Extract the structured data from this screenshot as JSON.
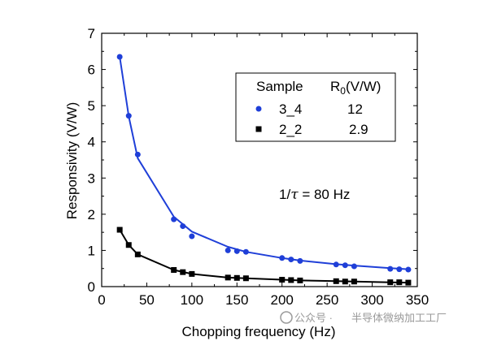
{
  "chart_data": {
    "type": "line",
    "xlabel": "Chopping frequency (Hz)",
    "ylabel": "Responsivity (V/W)",
    "xlim": [
      0,
      350
    ],
    "ylim": [
      0,
      7
    ],
    "x_ticks": [
      0,
      50,
      100,
      150,
      200,
      250,
      300,
      350
    ],
    "y_ticks": [
      0,
      1,
      2,
      3,
      4,
      5,
      6,
      7
    ],
    "grid": false,
    "legend": {
      "placement": "top-right",
      "header_col1": "Sample",
      "header_col2_main": "R",
      "header_col2_sub": "0",
      "header_col2_unit": "(V/W)",
      "entries": [
        {
          "name": "3_4",
          "r0": "12",
          "color": "#1f3fd8",
          "marker": "circle"
        },
        {
          "name": "2_2",
          "r0": "2.9",
          "color": "#000000",
          "marker": "square"
        }
      ]
    },
    "annotation": {
      "prefix": "1/",
      "symbol": "τ",
      "suffix": " = 80 Hz"
    },
    "series": [
      {
        "name": "3_4",
        "color": "#1f3fd8",
        "marker": "circle",
        "points": [
          [
            20,
            6.35
          ],
          [
            30,
            4.72
          ],
          [
            40,
            3.65
          ],
          [
            80,
            1.86
          ],
          [
            90,
            1.67
          ],
          [
            100,
            1.39
          ],
          [
            140,
            1.0
          ],
          [
            150,
            0.98
          ],
          [
            160,
            0.96
          ],
          [
            200,
            0.79
          ],
          [
            210,
            0.75
          ],
          [
            220,
            0.71
          ],
          [
            260,
            0.61
          ],
          [
            270,
            0.59
          ],
          [
            280,
            0.56
          ],
          [
            320,
            0.49
          ],
          [
            330,
            0.48
          ],
          [
            340,
            0.47
          ]
        ],
        "fit": [
          [
            20,
            6.35
          ],
          [
            30,
            4.7
          ],
          [
            40,
            3.55
          ],
          [
            80,
            1.93
          ],
          [
            100,
            1.52
          ],
          [
            140,
            1.1
          ],
          [
            160,
            0.96
          ],
          [
            200,
            0.79
          ],
          [
            220,
            0.72
          ],
          [
            260,
            0.62
          ],
          [
            280,
            0.58
          ],
          [
            320,
            0.51
          ],
          [
            340,
            0.48
          ]
        ]
      },
      {
        "name": "2_2",
        "color": "#000000",
        "marker": "square",
        "points": [
          [
            20,
            1.57
          ],
          [
            30,
            1.15
          ],
          [
            40,
            0.89
          ],
          [
            80,
            0.46
          ],
          [
            90,
            0.4
          ],
          [
            100,
            0.35
          ],
          [
            140,
            0.25
          ],
          [
            150,
            0.24
          ],
          [
            160,
            0.23
          ],
          [
            200,
            0.19
          ],
          [
            210,
            0.18
          ],
          [
            220,
            0.17
          ],
          [
            260,
            0.15
          ],
          [
            270,
            0.14
          ],
          [
            280,
            0.14
          ],
          [
            320,
            0.12
          ],
          [
            330,
            0.12
          ],
          [
            340,
            0.11
          ]
        ],
        "fit": [
          [
            20,
            1.57
          ],
          [
            30,
            1.15
          ],
          [
            40,
            0.89
          ],
          [
            80,
            0.46
          ],
          [
            100,
            0.35
          ],
          [
            140,
            0.25
          ],
          [
            160,
            0.23
          ],
          [
            200,
            0.19
          ],
          [
            220,
            0.17
          ],
          [
            260,
            0.15
          ],
          [
            280,
            0.14
          ],
          [
            320,
            0.12
          ],
          [
            340,
            0.11
          ]
        ]
      }
    ]
  },
  "watermark": {
    "prefix": "公众号 · ",
    "text": "半导体微纳加工工厂"
  }
}
